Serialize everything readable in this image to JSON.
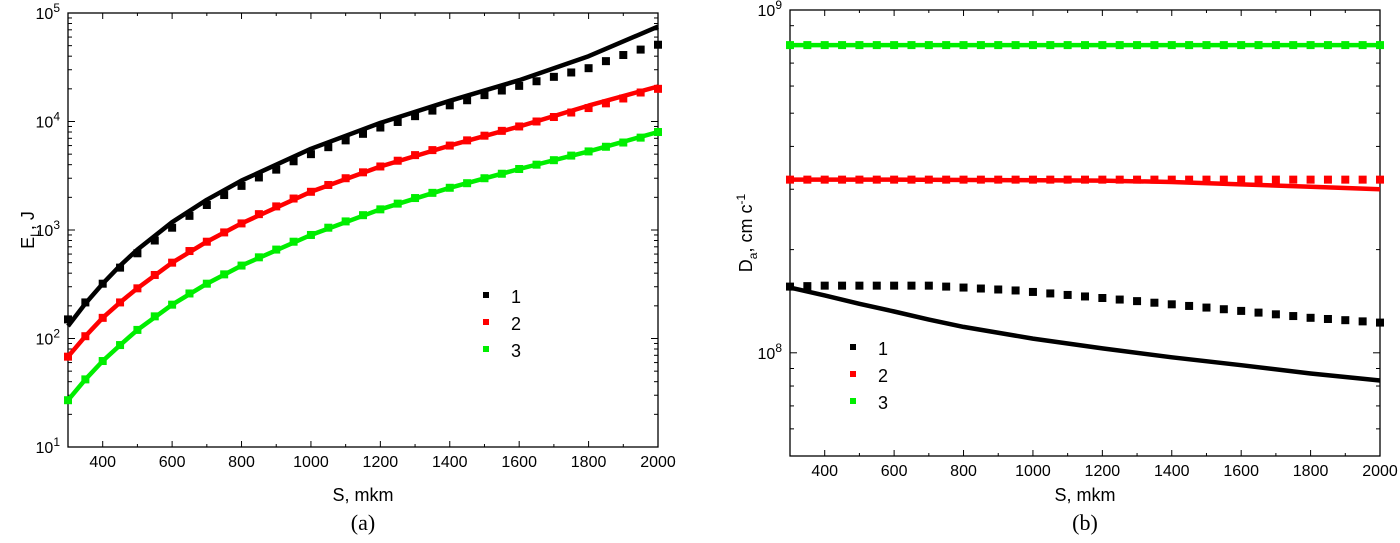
{
  "chart_data": [
    {
      "type": "line",
      "panel_label": "(a)",
      "xlabel": "S, mkm",
      "ylabel_main": "E",
      "ylabel_sub": "L",
      "ylabel_rest": ", J",
      "xlim": [
        300,
        2000
      ],
      "ylim": [
        10,
        100000
      ],
      "yscale": "log",
      "x_ticks": [
        400,
        600,
        800,
        1000,
        1200,
        1400,
        1600,
        1800,
        2000
      ],
      "y_ticks": [
        {
          "value": 10,
          "base": "10",
          "exp": "1"
        },
        {
          "value": 100,
          "base": "10",
          "exp": "2"
        },
        {
          "value": 1000,
          "base": "10",
          "exp": "3"
        },
        {
          "value": 10000,
          "base": "10",
          "exp": "4"
        },
        {
          "value": 100000,
          "base": "10",
          "exp": "5"
        }
      ],
      "legend": {
        "placement": "center-right",
        "entries": [
          "1",
          "2",
          "3"
        ]
      },
      "series": [
        {
          "name": "1",
          "color": "#000000",
          "style": "line",
          "x": [
            300,
            350,
            400,
            450,
            500,
            600,
            700,
            800,
            1000,
            1200,
            1400,
            1600,
            1800,
            2000
          ],
          "y": [
            130,
            210,
            320,
            470,
            660,
            1180,
            1900,
            2850,
            5600,
            9700,
            15500,
            24000,
            40000,
            75000
          ]
        },
        {
          "name": "1",
          "color": "#000000",
          "style": "markers",
          "x": [
            300,
            350,
            400,
            450,
            500,
            550,
            600,
            650,
            700,
            750,
            800,
            850,
            900,
            950,
            1000,
            1050,
            1100,
            1150,
            1200,
            1250,
            1300,
            1350,
            1400,
            1450,
            1500,
            1550,
            1600,
            1650,
            1700,
            1750,
            1800,
            1850,
            1900,
            1950,
            2000
          ],
          "y": [
            150,
            215,
            320,
            450,
            610,
            800,
            1050,
            1350,
            1700,
            2100,
            2550,
            3050,
            3600,
            4300,
            5000,
            5800,
            6700,
            7700,
            8800,
            9900,
            11200,
            12600,
            14100,
            15700,
            17500,
            19300,
            21300,
            23500,
            25800,
            28300,
            31000,
            36000,
            41000,
            46000,
            51000
          ]
        },
        {
          "name": "2",
          "color": "#ff0000",
          "style": "line",
          "x": [
            300,
            350,
            400,
            450,
            500,
            600,
            700,
            800,
            1000,
            1200,
            1400,
            1600,
            1800,
            2000
          ],
          "y": [
            68,
            105,
            155,
            215,
            290,
            500,
            780,
            1150,
            2250,
            3850,
            6000,
            9000,
            14000,
            21000
          ]
        },
        {
          "name": "2",
          "color": "#ff0000",
          "style": "markers",
          "x": [
            300,
            350,
            400,
            450,
            500,
            550,
            600,
            650,
            700,
            750,
            800,
            850,
            900,
            950,
            1000,
            1050,
            1100,
            1150,
            1200,
            1250,
            1300,
            1350,
            1400,
            1450,
            1500,
            1550,
            1600,
            1650,
            1700,
            1750,
            1800,
            1850,
            1900,
            1950,
            2000
          ],
          "y": [
            68,
            105,
            155,
            215,
            290,
            385,
            500,
            640,
            780,
            950,
            1150,
            1400,
            1650,
            1950,
            2250,
            2600,
            3000,
            3400,
            3850,
            4350,
            4900,
            5450,
            6000,
            6700,
            7400,
            8200,
            9000,
            10000,
            11000,
            12100,
            13300,
            14700,
            16300,
            18500,
            20000
          ]
        },
        {
          "name": "3",
          "color": "#00ee00",
          "style": "line",
          "x": [
            300,
            350,
            400,
            450,
            500,
            600,
            700,
            800,
            1000,
            1200,
            1400,
            1600,
            1800,
            2000
          ],
          "y": [
            27,
            42,
            62,
            87,
            120,
            205,
            320,
            470,
            900,
            1550,
            2450,
            3650,
            5300,
            8000
          ]
        },
        {
          "name": "3",
          "color": "#00ee00",
          "style": "markers",
          "x": [
            300,
            350,
            400,
            450,
            500,
            550,
            600,
            650,
            700,
            750,
            800,
            850,
            900,
            950,
            1000,
            1050,
            1100,
            1150,
            1200,
            1250,
            1300,
            1350,
            1400,
            1450,
            1500,
            1550,
            1600,
            1650,
            1700,
            1750,
            1800,
            1850,
            1900,
            1950,
            2000
          ],
          "y": [
            27,
            42,
            62,
            87,
            120,
            160,
            205,
            260,
            320,
            390,
            470,
            560,
            660,
            780,
            900,
            1050,
            1200,
            1370,
            1550,
            1750,
            1970,
            2200,
            2450,
            2700,
            3000,
            3300,
            3650,
            4000,
            4400,
            4850,
            5300,
            5850,
            6400,
            7100,
            8000
          ]
        }
      ]
    },
    {
      "type": "line",
      "panel_label": "(b)",
      "xlabel": "S, mkm",
      "ylabel_main": "D",
      "ylabel_sub": "a",
      "ylabel_rest": ", cm c",
      "ylabel_sup": "-1",
      "xlim": [
        300,
        2000
      ],
      "ylim": [
        50000000,
        1000000000
      ],
      "yscale": "log",
      "x_ticks": [
        400,
        600,
        800,
        1000,
        1200,
        1400,
        1600,
        1800,
        2000
      ],
      "y_ticks": [
        {
          "value": 100000000,
          "base": "10",
          "exp": "8"
        },
        {
          "value": 1000000000,
          "base": "10",
          "exp": "9"
        }
      ],
      "legend": {
        "placement": "bottom-left",
        "entries": [
          "1",
          "2",
          "3"
        ]
      },
      "series": [
        {
          "name": "1",
          "color": "#000000",
          "style": "line",
          "x": [
            300,
            400,
            500,
            600,
            700,
            800,
            1000,
            1200,
            1400,
            1600,
            1800,
            2000
          ],
          "y": [
            155000000,
            147000000,
            139000000,
            132000000,
            125000000,
            119000000,
            110000000,
            103000000,
            97000000,
            92000000,
            87000000,
            83000000
          ]
        },
        {
          "name": "1",
          "color": "#000000",
          "style": "markers",
          "x": [
            300,
            350,
            400,
            450,
            500,
            550,
            600,
            650,
            700,
            750,
            800,
            850,
            900,
            950,
            1000,
            1050,
            1100,
            1150,
            1200,
            1250,
            1300,
            1350,
            1400,
            1450,
            1500,
            1550,
            1600,
            1650,
            1700,
            1750,
            1800,
            1850,
            1900,
            1950,
            2000
          ],
          "y": [
            156000000,
            156500000,
            157000000,
            157000000,
            157000000,
            157000000,
            157000000,
            157000000,
            157000000,
            156000000,
            155000000,
            154000000,
            153000000,
            152000000,
            150500000,
            149000000,
            147500000,
            146000000,
            144500000,
            143000000,
            141500000,
            140000000,
            138500000,
            137000000,
            135500000,
            134000000,
            132500000,
            131000000,
            129500000,
            128000000,
            126500000,
            125500000,
            124500000,
            123500000,
            122500000
          ]
        },
        {
          "name": "2",
          "color": "#ff0000",
          "style": "line",
          "x": [
            300,
            600,
            900,
            1200,
            1400,
            1600,
            1800,
            2000
          ],
          "y": [
            320000000,
            320000000,
            319000000,
            318000000,
            315000000,
            310000000,
            305000000,
            300000000
          ]
        },
        {
          "name": "2",
          "color": "#ff0000",
          "style": "markers",
          "x": [
            300,
            350,
            400,
            450,
            500,
            550,
            600,
            650,
            700,
            750,
            800,
            850,
            900,
            950,
            1000,
            1050,
            1100,
            1150,
            1200,
            1250,
            1300,
            1350,
            1400,
            1450,
            1500,
            1550,
            1600,
            1650,
            1700,
            1750,
            1800,
            1850,
            1900,
            1950,
            2000
          ],
          "y": [
            320000000,
            320000000,
            320000000,
            320000000,
            320000000,
            320000000,
            320000000,
            320000000,
            320000000,
            320000000,
            320000000,
            320000000,
            320000000,
            320000000,
            320000000,
            320000000,
            320000000,
            320000000,
            320000000,
            320000000,
            320000000,
            320000000,
            320000000,
            320000000,
            320000000,
            320000000,
            320000000,
            320000000,
            320000000,
            320000000,
            320000000,
            320000000,
            320000000,
            320000000,
            320000000
          ]
        },
        {
          "name": "3",
          "color": "#00ee00",
          "style": "line",
          "x": [
            300,
            2000
          ],
          "y": [
            790000000,
            790000000
          ]
        },
        {
          "name": "3",
          "color": "#00ee00",
          "style": "markers",
          "x": [
            300,
            350,
            400,
            450,
            500,
            550,
            600,
            650,
            700,
            750,
            800,
            850,
            900,
            950,
            1000,
            1050,
            1100,
            1150,
            1200,
            1250,
            1300,
            1350,
            1400,
            1450,
            1500,
            1550,
            1600,
            1650,
            1700,
            1750,
            1800,
            1850,
            1900,
            1950,
            2000
          ],
          "y": [
            790000000,
            790000000,
            790000000,
            790000000,
            790000000,
            790000000,
            790000000,
            790000000,
            790000000,
            790000000,
            790000000,
            790000000,
            790000000,
            790000000,
            790000000,
            790000000,
            790000000,
            790000000,
            790000000,
            790000000,
            790000000,
            790000000,
            790000000,
            790000000,
            790000000,
            790000000,
            790000000,
            790000000,
            790000000,
            790000000,
            790000000,
            790000000,
            790000000,
            790000000,
            790000000
          ]
        }
      ]
    }
  ]
}
